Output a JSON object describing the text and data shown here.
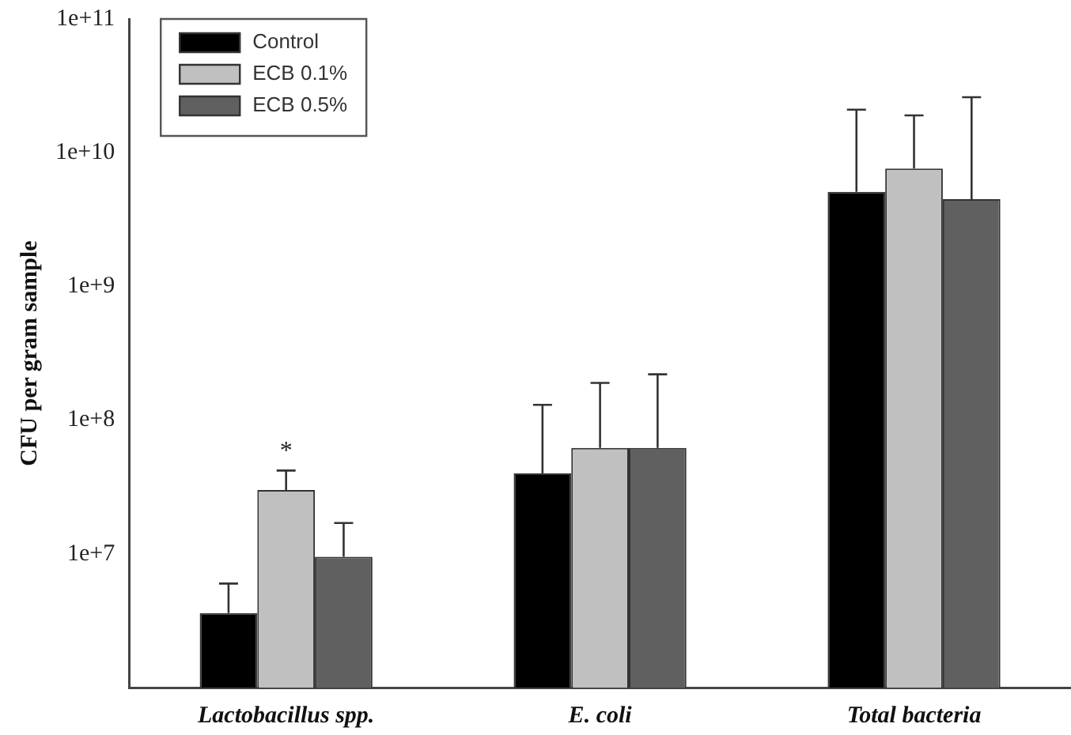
{
  "chart_data": {
    "type": "bar",
    "ylabel": "CFU per gram sample",
    "categories": [
      "Lactobacillus spp.",
      "E. coli",
      "Total bacteria"
    ],
    "series": [
      {
        "name": "Control",
        "color": "#000000",
        "values": [
          3600000,
          40000000,
          5100000000
        ],
        "errors": [
          [
            3600000,
            6000000
          ],
          [
            40000000,
            130000000
          ],
          [
            5100000000,
            21000000000
          ]
        ]
      },
      {
        "name": "ECB 0.1%",
        "color": "#c0c0c0",
        "values": [
          30000000,
          62000000,
          7600000000
        ],
        "errors": [
          [
            30000000,
            42000000
          ],
          [
            62000000,
            190000000
          ],
          [
            7600000000,
            19000000000
          ]
        ]
      },
      {
        "name": "ECB 0.5%",
        "color": "#606060",
        "values": [
          9500000,
          62000000,
          4500000000
        ],
        "errors": [
          [
            9500000,
            17000000
          ],
          [
            62000000,
            220000000
          ],
          [
            4500000000,
            26000000000
          ]
        ]
      }
    ],
    "log": true,
    "ylim": [
      1000000,
      100000000000
    ],
    "yticks": [
      {
        "value": 10000000,
        "label": "1e+7"
      },
      {
        "value": 100000000,
        "label": "1e+8"
      },
      {
        "value": 1000000000,
        "label": "1e+9"
      },
      {
        "value": 10000000000,
        "label": "1e+10"
      },
      {
        "value": 100000000000,
        "label": "1e+11"
      }
    ],
    "annotations": [
      {
        "text": "*",
        "x": "Lactobacillus spp.",
        "y": 42000000
      }
    ],
    "legend": "top left",
    "grid": false
  }
}
